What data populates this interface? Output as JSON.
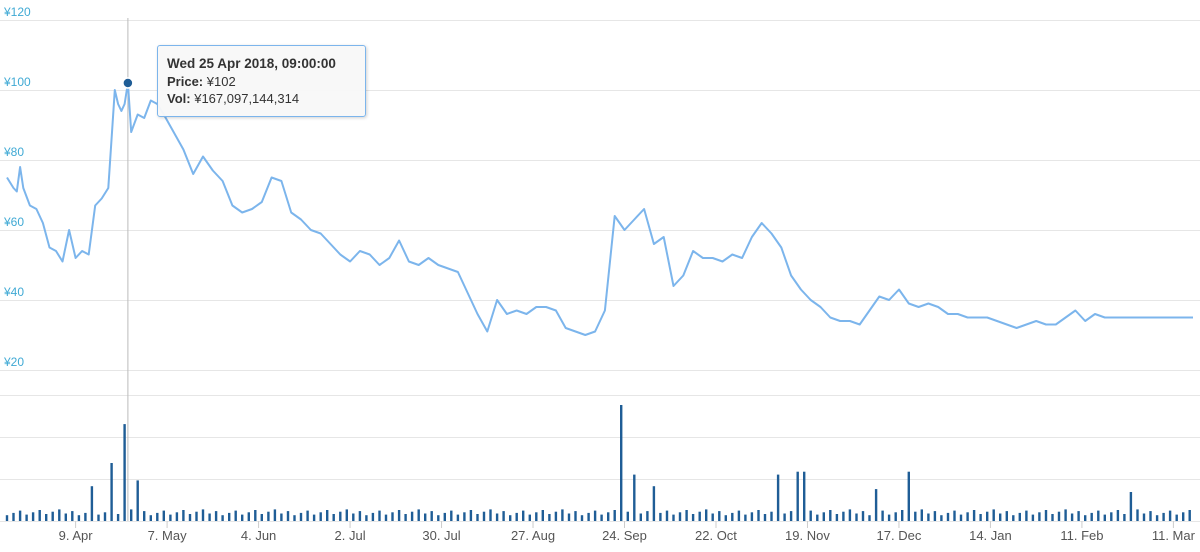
{
  "chart_data": [
    {
      "type": "line",
      "series": [
        {
          "x": [
            "2018-03-19",
            "2018-03-21",
            "2018-03-22",
            "2018-03-23",
            "2018-03-24",
            "2018-03-26",
            "2018-03-28",
            "2018-03-30",
            "2018-04-01",
            "2018-04-03",
            "2018-04-05",
            "2018-04-07",
            "2018-04-09",
            "2018-04-11",
            "2018-04-13",
            "2018-04-15",
            "2018-04-17",
            "2018-04-19",
            "2018-04-21",
            "2018-04-22",
            "2018-04-23",
            "2018-04-24",
            "2018-04-25",
            "2018-04-26",
            "2018-04-28",
            "2018-04-30",
            "2018-05-02",
            "2018-05-04",
            "2018-05-06",
            "2018-05-09",
            "2018-05-12",
            "2018-05-15",
            "2018-05-18",
            "2018-05-21",
            "2018-05-24",
            "2018-05-27",
            "2018-05-30",
            "2018-06-02",
            "2018-06-05",
            "2018-06-08",
            "2018-06-11",
            "2018-06-14",
            "2018-06-17",
            "2018-06-20",
            "2018-06-23",
            "2018-06-26",
            "2018-06-29",
            "2018-07-02",
            "2018-07-05",
            "2018-07-08",
            "2018-07-11",
            "2018-07-14",
            "2018-07-17",
            "2018-07-20",
            "2018-07-23",
            "2018-07-26",
            "2018-07-29",
            "2018-08-01",
            "2018-08-04",
            "2018-08-07",
            "2018-08-10",
            "2018-08-13",
            "2018-08-16",
            "2018-08-19",
            "2018-08-22",
            "2018-08-25",
            "2018-08-28",
            "2018-08-31",
            "2018-09-03",
            "2018-09-06",
            "2018-09-09",
            "2018-09-12",
            "2018-09-15",
            "2018-09-18",
            "2018-09-21",
            "2018-09-24",
            "2018-09-27",
            "2018-09-30",
            "2018-10-03",
            "2018-10-06",
            "2018-10-09",
            "2018-10-12",
            "2018-10-15",
            "2018-10-18",
            "2018-10-21",
            "2018-10-24",
            "2018-10-27",
            "2018-10-30",
            "2018-11-02",
            "2018-11-05",
            "2018-11-08",
            "2018-11-11",
            "2018-11-14",
            "2018-11-17",
            "2018-11-20",
            "2018-11-23",
            "2018-11-26",
            "2018-11-29",
            "2018-12-02",
            "2018-12-05",
            "2018-12-08",
            "2018-12-11",
            "2018-12-14",
            "2018-12-17",
            "2018-12-20",
            "2018-12-23",
            "2018-12-26",
            "2018-12-29",
            "2019-01-01",
            "2019-01-04",
            "2019-01-07",
            "2019-01-10",
            "2019-01-13",
            "2019-01-16",
            "2019-01-19",
            "2019-01-22",
            "2019-01-25",
            "2019-01-28",
            "2019-01-31",
            "2019-02-03",
            "2019-02-06",
            "2019-02-09",
            "2019-02-12",
            "2019-02-15",
            "2019-02-18",
            "2019-02-21",
            "2019-02-24",
            "2019-02-27",
            "2019-03-02",
            "2019-03-05",
            "2019-03-08",
            "2019-03-11",
            "2019-03-14",
            "2019-03-17"
          ],
          "values": [
            75,
            72,
            71,
            78,
            72,
            67,
            66,
            62,
            55,
            54,
            51,
            60,
            52,
            54,
            53,
            67,
            69,
            72,
            100,
            96,
            94,
            96,
            102,
            88,
            93,
            92,
            97,
            96,
            93,
            88,
            83,
            76,
            81,
            77,
            74,
            67,
            65,
            66,
            68,
            75,
            74,
            65,
            63,
            60,
            59,
            56,
            53,
            51,
            54,
            53,
            50,
            52,
            57,
            51,
            50,
            52,
            50,
            49,
            48,
            42,
            36,
            31,
            40,
            36,
            37,
            36,
            38,
            38,
            37,
            32,
            31,
            30,
            31,
            37,
            64,
            60,
            63,
            66,
            56,
            58,
            44,
            47,
            54,
            52,
            52,
            51,
            53,
            52,
            58,
            62,
            59,
            55,
            47,
            43,
            40,
            38,
            35,
            34,
            34,
            33,
            37,
            41,
            40,
            43,
            39,
            38,
            39,
            38,
            36,
            36,
            35,
            35,
            35,
            34,
            33,
            32,
            33,
            34,
            33,
            33,
            35,
            37,
            34,
            36,
            35,
            35,
            35,
            35,
            35,
            35,
            35,
            35,
            35,
            35
          ],
          "color": "#7cb5ec"
        }
      ],
      "ylim": [
        20,
        120
      ],
      "ytick_labels": [
        "¥20",
        "¥40",
        "¥60",
        "¥80",
        "¥100",
        "¥120"
      ],
      "xtick_labels": [
        "9. Apr",
        "7. May",
        "4. Jun",
        "2. Jul",
        "30. Jul",
        "27. Aug",
        "24. Sep",
        "22. Oct",
        "19. Nov",
        "17. Dec",
        "14. Jan",
        "11. Feb",
        "11. Mar"
      ],
      "grid": true
    },
    {
      "type": "bar",
      "series": [
        {
          "color": "#1f5d96"
        }
      ],
      "baseline_volume": 15,
      "spikes": [
        {
          "date": "2018-04-20",
          "value": 100
        },
        {
          "date": "2018-04-25",
          "value": 167
        },
        {
          "date": "2018-04-28",
          "value": 70
        },
        {
          "date": "2018-04-14",
          "value": 60
        },
        {
          "date": "2018-09-24",
          "value": 200
        },
        {
          "date": "2018-09-28",
          "value": 80
        },
        {
          "date": "2018-10-03",
          "value": 60
        },
        {
          "date": "2018-11-10",
          "value": 80
        },
        {
          "date": "2018-11-16",
          "value": 85
        },
        {
          "date": "2018-11-18",
          "value": 85
        },
        {
          "date": "2018-12-21",
          "value": 85
        },
        {
          "date": "2018-12-10",
          "value": 55
        },
        {
          "date": "2019-02-27",
          "value": 50
        }
      ],
      "grid": true
    }
  ],
  "tooltip": {
    "title": "Wed 25 Apr 2018, 09:00:00",
    "price_label": "Price:",
    "price_value": "¥102",
    "vol_label": "Vol:",
    "vol_value": "¥167,097,144,314"
  },
  "crosshair_date": "2018-04-25"
}
